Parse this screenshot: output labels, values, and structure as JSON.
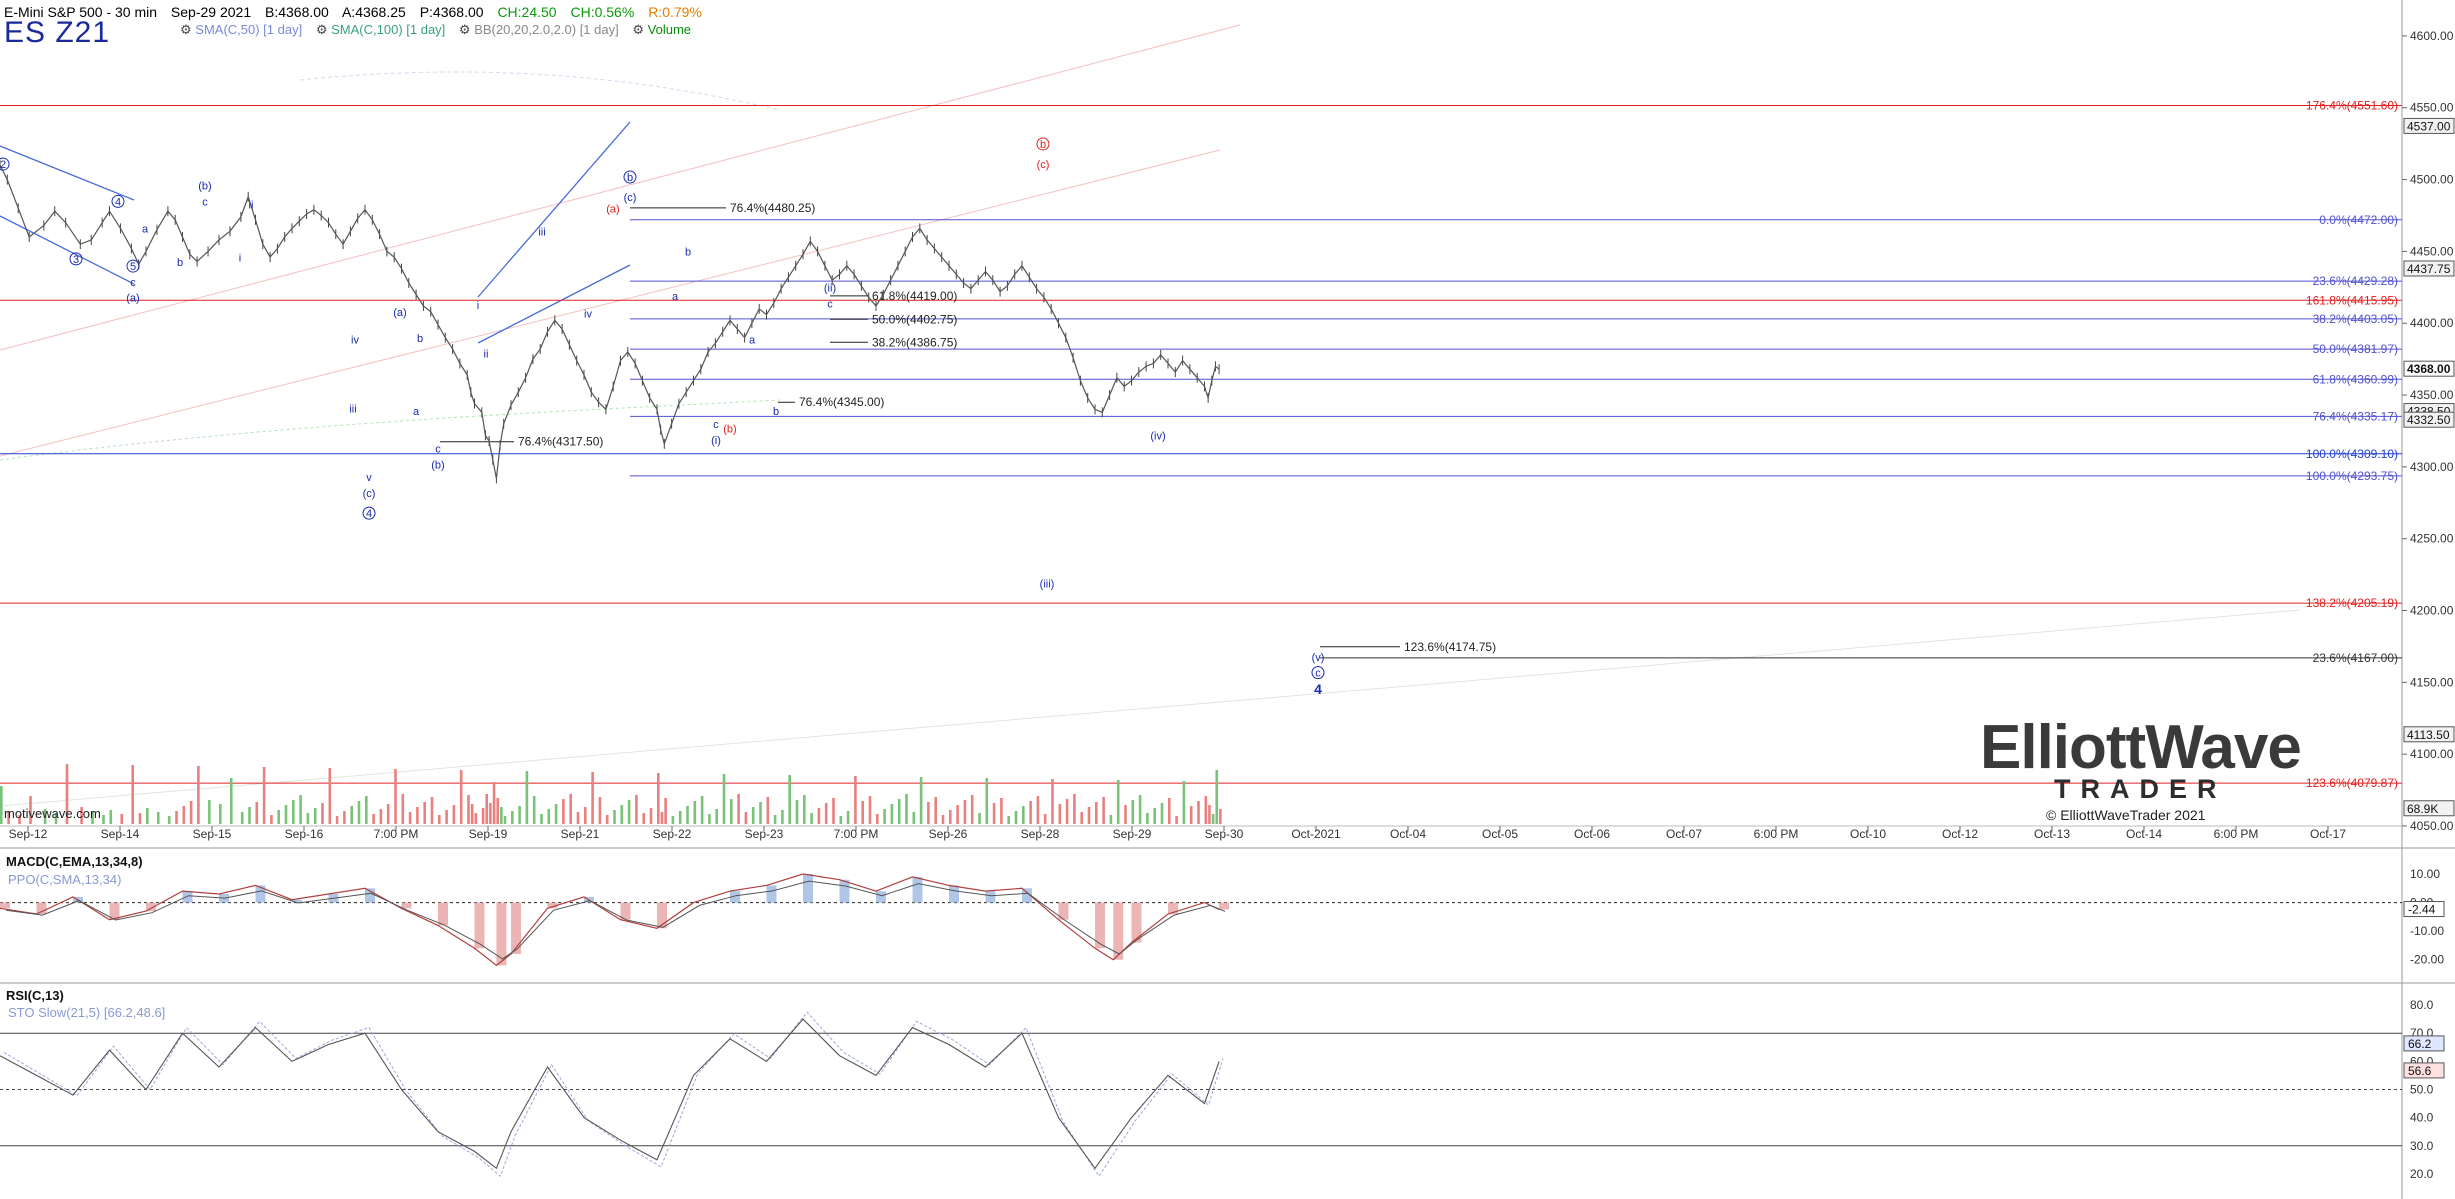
{
  "header": {
    "title": "E-Mini S&P 500 - 30 min",
    "date": "Sep-29 2021",
    "bid": "B:4368.00",
    "ask": "A:4368.25",
    "price": "P:4368.00",
    "change": "CH:24.50",
    "change_pct": "CH:0.56%",
    "range": "R:0.79%",
    "symbol": "ES Z21",
    "studies": [
      "SMA(C,50) [1 day]",
      "SMA(C,100) [1 day]",
      "BB(20,20,2.0,2.0) [1 day]",
      "Volume"
    ],
    "watermark": "motivewave.com"
  },
  "logo": {
    "line1": "ElliottWave",
    "line2": "TRADER",
    "line3": "© ElliottWaveTrader 2021"
  },
  "chart_data": {
    "type": "line",
    "title": "E-Mini S&P 500 - 30 min",
    "ylim": [
      4050,
      4625
    ],
    "y_ticks": [
      4050,
      4100,
      4150,
      4200,
      4250,
      4300,
      4350,
      4400,
      4450,
      4500,
      4550,
      4600
    ],
    "x_labels": [
      "Sep-12",
      "Sep-14",
      "Sep-15",
      "Sep-16",
      "7:00 PM",
      "Sep-19",
      "Sep-21",
      "Sep-22",
      "Sep-23",
      "7:00 PM",
      "Sep-26",
      "Sep-28",
      "Sep-29",
      "Sep-30",
      "Oct-2021",
      "Oct-04",
      "Oct-05",
      "Oct-06",
      "Oct-07",
      "6:00 PM",
      "Oct-10",
      "Oct-12",
      "Oct-13",
      "Oct-14",
      "6:00 PM",
      "Oct-17"
    ],
    "price_badges": [
      {
        "label": "4537.00",
        "value": 4537.0
      },
      {
        "label": "4437.75",
        "value": 4437.75
      },
      {
        "label": "4368.00",
        "value": 4368.0,
        "current": true
      },
      {
        "label": "4338.50",
        "value": 4338.5
      },
      {
        "label": "4332.50",
        "value": 4332.5
      },
      {
        "label": "4113.50",
        "value": 4113.5
      },
      {
        "label": "68.9K",
        "value": 4062
      }
    ],
    "price_series": [
      [
        0,
        4510
      ],
      [
        2,
        4500
      ],
      [
        5,
        4480
      ],
      [
        8,
        4460
      ],
      [
        12,
        4468
      ],
      [
        15,
        4478
      ],
      [
        18,
        4470
      ],
      [
        22,
        4455
      ],
      [
        25,
        4458
      ],
      [
        28,
        4470
      ],
      [
        30,
        4478
      ],
      [
        33,
        4466
      ],
      [
        36,
        4452
      ],
      [
        38,
        4441
      ],
      [
        40,
        4450
      ],
      [
        43,
        4465
      ],
      [
        46,
        4478
      ],
      [
        48,
        4472
      ],
      [
        50,
        4460
      ],
      [
        52,
        4448
      ],
      [
        54,
        4443
      ],
      [
        57,
        4450
      ],
      [
        60,
        4458
      ],
      [
        63,
        4464
      ],
      [
        66,
        4474
      ],
      [
        68,
        4488
      ],
      [
        70,
        4472
      ],
      [
        72,
        4455
      ],
      [
        74,
        4446
      ],
      [
        76,
        4452
      ],
      [
        78,
        4460
      ],
      [
        80,
        4466
      ],
      [
        82,
        4471
      ],
      [
        84,
        4476
      ],
      [
        86,
        4479
      ],
      [
        88,
        4475
      ],
      [
        90,
        4470
      ],
      [
        92,
        4462
      ],
      [
        94,
        4455
      ],
      [
        96,
        4464
      ],
      [
        98,
        4473
      ],
      [
        100,
        4479
      ],
      [
        102,
        4472
      ],
      [
        104,
        4462
      ],
      [
        106,
        4450
      ],
      [
        108,
        4446
      ],
      [
        110,
        4438
      ],
      [
        112,
        4428
      ],
      [
        114,
        4420
      ],
      [
        116,
        4412
      ],
      [
        118,
        4408
      ],
      [
        120,
        4399
      ],
      [
        122,
        4390
      ],
      [
        124,
        4382
      ],
      [
        126,
        4372
      ],
      [
        128,
        4364
      ],
      [
        129,
        4352
      ],
      [
        130,
        4344
      ],
      [
        132,
        4338
      ],
      [
        133,
        4322
      ],
      [
        134,
        4318
      ],
      [
        135,
        4305
      ],
      [
        136,
        4292
      ],
      [
        137,
        4315
      ],
      [
        138,
        4330
      ],
      [
        140,
        4343
      ],
      [
        142,
        4352
      ],
      [
        144,
        4362
      ],
      [
        146,
        4375
      ],
      [
        148,
        4382
      ],
      [
        150,
        4394
      ],
      [
        152,
        4402
      ],
      [
        154,
        4396
      ],
      [
        156,
        4385
      ],
      [
        158,
        4374
      ],
      [
        160,
        4364
      ],
      [
        162,
        4352
      ],
      [
        164,
        4345
      ],
      [
        166,
        4340
      ],
      [
        168,
        4356
      ],
      [
        170,
        4374
      ],
      [
        172,
        4380
      ],
      [
        174,
        4372
      ],
      [
        176,
        4360
      ],
      [
        178,
        4348
      ],
      [
        180,
        4340
      ],
      [
        181,
        4326
      ],
      [
        182,
        4316
      ],
      [
        184,
        4330
      ],
      [
        186,
        4344
      ],
      [
        188,
        4352
      ],
      [
        190,
        4360
      ],
      [
        192,
        4368
      ],
      [
        194,
        4380
      ],
      [
        196,
        4386
      ],
      [
        198,
        4394
      ],
      [
        200,
        4402
      ],
      [
        202,
        4396
      ],
      [
        204,
        4390
      ],
      [
        206,
        4400
      ],
      [
        208,
        4410
      ],
      [
        210,
        4406
      ],
      [
        212,
        4414
      ],
      [
        214,
        4424
      ],
      [
        216,
        4432
      ],
      [
        218,
        4440
      ],
      [
        220,
        4448
      ],
      [
        222,
        4457
      ],
      [
        224,
        4450
      ],
      [
        226,
        4440
      ],
      [
        228,
        4430
      ],
      [
        230,
        4434
      ],
      [
        232,
        4440
      ],
      [
        234,
        4434
      ],
      [
        236,
        4426
      ],
      [
        238,
        4418
      ],
      [
        240,
        4412
      ],
      [
        242,
        4420
      ],
      [
        244,
        4430
      ],
      [
        246,
        4440
      ],
      [
        248,
        4450
      ],
      [
        250,
        4460
      ],
      [
        252,
        4466
      ],
      [
        254,
        4458
      ],
      [
        256,
        4452
      ],
      [
        258,
        4446
      ],
      [
        260,
        4440
      ],
      [
        262,
        4434
      ],
      [
        264,
        4428
      ],
      [
        266,
        4424
      ],
      [
        268,
        4430
      ],
      [
        270,
        4436
      ],
      [
        272,
        4430
      ],
      [
        274,
        4422
      ],
      [
        276,
        4426
      ],
      [
        278,
        4434
      ],
      [
        280,
        4440
      ],
      [
        282,
        4432
      ],
      [
        284,
        4424
      ],
      [
        286,
        4418
      ],
      [
        288,
        4410
      ],
      [
        290,
        4400
      ],
      [
        292,
        4390
      ],
      [
        294,
        4376
      ],
      [
        296,
        4360
      ],
      [
        298,
        4348
      ],
      [
        300,
        4340
      ],
      [
        302,
        4338
      ],
      [
        304,
        4350
      ],
      [
        306,
        4362
      ],
      [
        308,
        4356
      ],
      [
        310,
        4360
      ],
      [
        312,
        4366
      ],
      [
        314,
        4370
      ],
      [
        316,
        4372
      ],
      [
        318,
        4378
      ],
      [
        320,
        4372
      ],
      [
        322,
        4366
      ],
      [
        324,
        4374
      ],
      [
        326,
        4368
      ],
      [
        328,
        4362
      ],
      [
        330,
        4356
      ],
      [
        331,
        4348
      ],
      [
        332,
        4360
      ],
      [
        333,
        4370
      ],
      [
        334,
        4368
      ]
    ],
    "rsi_series": [
      [
        0,
        62
      ],
      [
        10,
        55
      ],
      [
        20,
        48
      ],
      [
        30,
        64
      ],
      [
        40,
        50
      ],
      [
        50,
        70
      ],
      [
        60,
        58
      ],
      [
        70,
        72
      ],
      [
        80,
        60
      ],
      [
        90,
        66
      ],
      [
        100,
        70
      ],
      [
        110,
        50
      ],
      [
        120,
        35
      ],
      [
        130,
        28
      ],
      [
        136,
        22
      ],
      [
        140,
        35
      ],
      [
        150,
        58
      ],
      [
        160,
        40
      ],
      [
        170,
        32
      ],
      [
        180,
        25
      ],
      [
        190,
        55
      ],
      [
        200,
        68
      ],
      [
        210,
        60
      ],
      [
        220,
        75
      ],
      [
        230,
        62
      ],
      [
        240,
        55
      ],
      [
        250,
        72
      ],
      [
        260,
        66
      ],
      [
        270,
        58
      ],
      [
        280,
        70
      ],
      [
        290,
        40
      ],
      [
        300,
        22
      ],
      [
        310,
        40
      ],
      [
        320,
        55
      ],
      [
        330,
        45
      ],
      [
        334,
        60
      ]
    ],
    "macd_series": [
      [
        0,
        -2
      ],
      [
        10,
        -4
      ],
      [
        20,
        2
      ],
      [
        30,
        -6
      ],
      [
        40,
        -3
      ],
      [
        50,
        4
      ],
      [
        60,
        3
      ],
      [
        70,
        6
      ],
      [
        80,
        1
      ],
      [
        90,
        3
      ],
      [
        100,
        5
      ],
      [
        110,
        -2
      ],
      [
        120,
        -8
      ],
      [
        130,
        -16
      ],
      [
        136,
        -22
      ],
      [
        140,
        -18
      ],
      [
        150,
        -2
      ],
      [
        160,
        2
      ],
      [
        170,
        -6
      ],
      [
        180,
        -9
      ],
      [
        190,
        0
      ],
      [
        200,
        4
      ],
      [
        210,
        6
      ],
      [
        220,
        10
      ],
      [
        230,
        8
      ],
      [
        240,
        4
      ],
      [
        250,
        9
      ],
      [
        260,
        6
      ],
      [
        270,
        4
      ],
      [
        280,
        5
      ],
      [
        290,
        -6
      ],
      [
        300,
        -16
      ],
      [
        305,
        -20
      ],
      [
        310,
        -14
      ],
      [
        320,
        -4
      ],
      [
        330,
        0
      ],
      [
        334,
        -2.44
      ]
    ],
    "horizontal_levels": [
      {
        "label": "176.4%(4551.60)",
        "value": 4551.6,
        "color": "#e02020",
        "x0": 0
      },
      {
        "label": "0.0%(4472.00)",
        "value": 4472.0,
        "color": "#5050d0",
        "x0": 630
      },
      {
        "label": "23.6%(4429.28)",
        "value": 4429.28,
        "color": "#5050d0",
        "x0": 630
      },
      {
        "label": "161.8%(4415.95)",
        "value": 4415.95,
        "color": "#e02020",
        "x0": 0
      },
      {
        "label": "38.2%(4403.05)",
        "value": 4403.05,
        "color": "#5050d0",
        "x0": 630
      },
      {
        "label": "50.0%(4381.97)",
        "value": 4381.97,
        "color": "#5050d0",
        "x0": 630
      },
      {
        "label": "61.8%(4360.99)",
        "value": 4360.99,
        "color": "#5050d0",
        "x0": 630
      },
      {
        "label": "76.4%(4335.17)",
        "value": 4335.17,
        "color": "#5050d0",
        "x0": 630
      },
      {
        "label": "100.0%(4309.10)",
        "value": 4309.1,
        "color": "#2040d0",
        "x0": 0
      },
      {
        "label": "100.0%(4293.75)",
        "value": 4293.75,
        "color": "#5050d0",
        "x0": 630
      },
      {
        "label": "138.2%(4205.19)",
        "value": 4205.19,
        "color": "#e02020",
        "x0": 0
      },
      {
        "label": "23.6%(4167.00)",
        "value": 4167.0,
        "color": "#333333",
        "x0": 1320
      },
      {
        "label": "123.6%(4079.87)",
        "value": 4079.87,
        "color": "#e02020",
        "x0": 0
      }
    ],
    "short_levels": [
      {
        "label": "76.4%(4480.25)",
        "value": 4480.25,
        "x0": 630,
        "x1": 726
      },
      {
        "label": "61.8%(4419.00)",
        "value": 4419.0,
        "x0": 830,
        "x1": 868
      },
      {
        "label": "50.0%(4402.75)",
        "value": 4402.75,
        "x0": 830,
        "x1": 868
      },
      {
        "label": "38.2%(4386.75)",
        "value": 4386.75,
        "x0": 830,
        "x1": 868
      },
      {
        "label": "76.4%(4345.00)",
        "value": 4345.0,
        "x0": 778,
        "x1": 795
      },
      {
        "label": "76.4%(4317.50)",
        "value": 4317.5,
        "x0": 440,
        "x1": 514
      },
      {
        "label": "123.6%(4174.75)",
        "value": 4174.75,
        "x0": 1320,
        "x1": 1400
      }
    ],
    "wave_labels": [
      {
        "t": "2",
        "x": 3,
        "y": 4508,
        "c": "#1a2ab0",
        "circ": true
      },
      {
        "t": "3",
        "x": 76,
        "y": 4442,
        "c": "#1a2ab0",
        "circ": true
      },
      {
        "t": "4",
        "x": 118,
        "y": 4482,
        "c": "#1a2ab0",
        "circ": true
      },
      {
        "t": "5",
        "x": 133,
        "y": 4437,
        "c": "#1a2ab0",
        "circ": true
      },
      {
        "t": "c",
        "x": 133,
        "y": 4426,
        "c": "#1a2ab0"
      },
      {
        "t": "(a)",
        "x": 133,
        "y": 4415,
        "c": "#1a2ab0"
      },
      {
        "t": "a",
        "x": 145,
        "y": 4463,
        "c": "#1a2ab0"
      },
      {
        "t": "b",
        "x": 180,
        "y": 4440,
        "c": "#1a2ab0"
      },
      {
        "t": "(b)",
        "x": 205,
        "y": 4493,
        "c": "#1a2ab0"
      },
      {
        "t": "c",
        "x": 205,
        "y": 4482,
        "c": "#1a2ab0"
      },
      {
        "t": "i",
        "x": 240,
        "y": 4443,
        "c": "#1a2ab0"
      },
      {
        "t": "ii",
        "x": 251,
        "y": 4480,
        "c": "#1a2ab0"
      },
      {
        "t": "iv",
        "x": 355,
        "y": 4386,
        "c": "#1a2ab0"
      },
      {
        "t": "iii",
        "x": 353,
        "y": 4338,
        "c": "#1a2ab0"
      },
      {
        "t": "v",
        "x": 369,
        "y": 4290,
        "c": "#1a2ab0"
      },
      {
        "t": "(c)",
        "x": 369,
        "y": 4279,
        "c": "#1a2ab0"
      },
      {
        "t": "4",
        "x": 369,
        "y": 4265,
        "c": "#1a2ab0",
        "circ": true
      },
      {
        "t": "(a)",
        "x": 400,
        "y": 4405,
        "c": "#1a2ab0"
      },
      {
        "t": "b",
        "x": 420,
        "y": 4387,
        "c": "#1a2ab0"
      },
      {
        "t": "a",
        "x": 416,
        "y": 4336,
        "c": "#1a2ab0"
      },
      {
        "t": "c",
        "x": 438,
        "y": 4310,
        "c": "#1a2ab0"
      },
      {
        "t": "(b)",
        "x": 438,
        "y": 4299,
        "c": "#1a2ab0"
      },
      {
        "t": "i",
        "x": 478,
        "y": 4410,
        "c": "#1a2ab0"
      },
      {
        "t": "ii",
        "x": 486,
        "y": 4376,
        "c": "#1a2ab0"
      },
      {
        "t": "iii",
        "x": 542,
        "y": 4461,
        "c": "#1a2ab0"
      },
      {
        "t": "iv",
        "x": 588,
        "y": 4404,
        "c": "#1a2ab0"
      },
      {
        "t": "(a)",
        "x": 613,
        "y": 4477,
        "c": "#e02020"
      },
      {
        "t": "b",
        "x": 630,
        "y": 4499,
        "c": "#1a2ab0",
        "circ": true
      },
      {
        "t": "(c)",
        "x": 630,
        "y": 4485,
        "c": "#1a2ab0"
      },
      {
        "t": "b",
        "x": 688,
        "y": 4447,
        "c": "#1a2ab0"
      },
      {
        "t": "a",
        "x": 675,
        "y": 4416,
        "c": "#1a2ab0"
      },
      {
        "t": "c",
        "x": 716,
        "y": 4327,
        "c": "#1a2ab0"
      },
      {
        "t": "(i)",
        "x": 716,
        "y": 4316,
        "c": "#1a2ab0"
      },
      {
        "t": "(b)",
        "x": 730,
        "y": 4324,
        "c": "#e02020"
      },
      {
        "t": "a",
        "x": 752,
        "y": 4386,
        "c": "#1a2ab0"
      },
      {
        "t": "b",
        "x": 776,
        "y": 4336,
        "c": "#1a2ab0"
      },
      {
        "t": "(ii)",
        "x": 830,
        "y": 4422,
        "c": "#1a2ab0"
      },
      {
        "t": "c",
        "x": 830,
        "y": 4411,
        "c": "#1a2ab0"
      },
      {
        "t": "b",
        "x": 1043,
        "y": 4522,
        "c": "#e02020",
        "circ": true
      },
      {
        "t": "(c)",
        "x": 1043,
        "y": 4508,
        "c": "#e02020"
      },
      {
        "t": "(iv)",
        "x": 1158,
        "y": 4319,
        "c": "#1a2ab0"
      },
      {
        "t": "(iii)",
        "x": 1047,
        "y": 4216,
        "c": "#1a2ab0"
      },
      {
        "t": "(v)",
        "x": 1318,
        "y": 4165,
        "c": "#1a2ab0"
      },
      {
        "t": "c",
        "x": 1318,
        "y": 4154,
        "c": "#1a2ab0",
        "circ": true
      },
      {
        "t": "4",
        "x": 1318,
        "y": 4142,
        "c": "#1a2ab0",
        "bold": true
      }
    ],
    "macd_panel": {
      "label": "MACD(C,EMA,13,34,8)",
      "sub": "PPO(C,SMA,13,34)",
      "ticks": [
        "10.00",
        "0.00",
        "-10.00",
        "-20.00"
      ],
      "current": "-2.44",
      "ylim": [
        -25,
        17
      ]
    },
    "rsi_panel": {
      "label": "RSI(C,13)",
      "sub": "STO Slow(21,5) [66.2,48.6]",
      "ticks": [
        "80.0",
        "70.0",
        "60.0",
        "50.0",
        "40.0",
        "30.0",
        "20.0"
      ],
      "badges": [
        "66.2",
        "56.6"
      ],
      "ylim": [
        15,
        85
      ]
    }
  }
}
